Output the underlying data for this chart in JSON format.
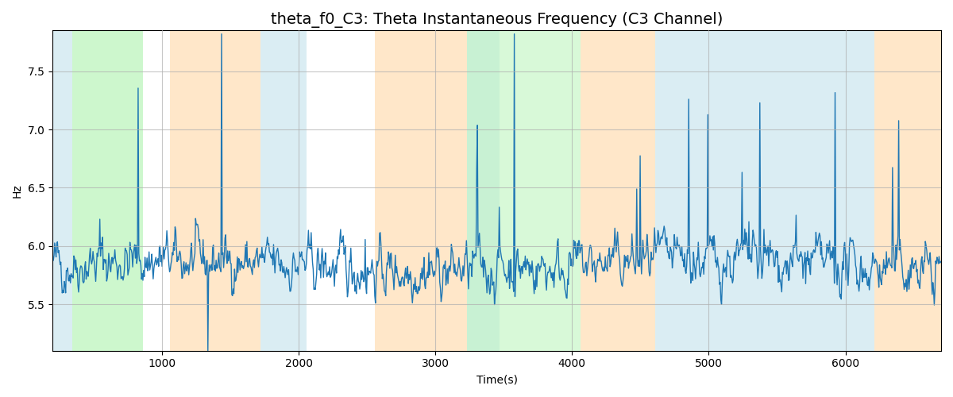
{
  "title": "theta_f0_C3: Theta Instantaneous Frequency (C3 Channel)",
  "xlabel": "Time(s)",
  "ylabel": "Hz",
  "xlim": [
    200,
    6700
  ],
  "ylim": [
    5.1,
    7.85
  ],
  "yticks": [
    5.5,
    6.0,
    6.5,
    7.0,
    7.5
  ],
  "xticks": [
    1000,
    2000,
    3000,
    4000,
    5000,
    6000
  ],
  "background_bands": [
    {
      "xmin": 200,
      "xmax": 345,
      "color": "#add8e6",
      "alpha": 0.45
    },
    {
      "xmin": 345,
      "xmax": 860,
      "color": "#90ee90",
      "alpha": 0.45
    },
    {
      "xmin": 1060,
      "xmax": 1720,
      "color": "#ffd59e",
      "alpha": 0.55
    },
    {
      "xmin": 1720,
      "xmax": 2060,
      "color": "#add8e6",
      "alpha": 0.45
    },
    {
      "xmin": 2560,
      "xmax": 3230,
      "color": "#ffd59e",
      "alpha": 0.55
    },
    {
      "xmin": 3230,
      "xmax": 3470,
      "color": "#add8e6",
      "alpha": 0.3
    },
    {
      "xmin": 3230,
      "xmax": 4060,
      "color": "#90ee90",
      "alpha": 0.35
    },
    {
      "xmin": 4060,
      "xmax": 4610,
      "color": "#ffd59e",
      "alpha": 0.55
    },
    {
      "xmin": 4610,
      "xmax": 6210,
      "color": "#add8e6",
      "alpha": 0.45
    },
    {
      "xmin": 6210,
      "xmax": 6700,
      "color": "#ffd59e",
      "alpha": 0.55
    }
  ],
  "line_color": "#1f77b4",
  "line_width": 1.0,
  "grid_color": "#b0b0b0",
  "grid_alpha": 0.7,
  "grid_linewidth": 0.8,
  "seed": 42,
  "n_points": 1300,
  "x_start": 200,
  "x_end": 6700,
  "base_freq": 5.83,
  "noise_std": 0.12,
  "ar_coeff": 0.72,
  "spike_probability": 0.018,
  "spike_magnitude_mean": 0.7,
  "title_fontsize": 14
}
